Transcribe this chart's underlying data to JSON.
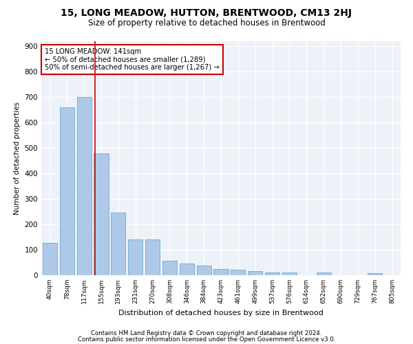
{
  "title": "15, LONG MEADOW, HUTTON, BRENTWOOD, CM13 2HJ",
  "subtitle": "Size of property relative to detached houses in Brentwood",
  "xlabel": "Distribution of detached houses by size in Brentwood",
  "ylabel": "Number of detached properties",
  "categories": [
    "40sqm",
    "78sqm",
    "117sqm",
    "155sqm",
    "193sqm",
    "231sqm",
    "270sqm",
    "308sqm",
    "346sqm",
    "384sqm",
    "423sqm",
    "461sqm",
    "499sqm",
    "537sqm",
    "576sqm",
    "614sqm",
    "652sqm",
    "690sqm",
    "729sqm",
    "767sqm",
    "805sqm"
  ],
  "values": [
    128,
    660,
    700,
    480,
    245,
    140,
    140,
    58,
    45,
    38,
    25,
    22,
    16,
    12,
    12,
    0,
    10,
    0,
    0,
    8,
    0
  ],
  "bar_color": "#aec8e8",
  "bar_edge_color": "#6aaad4",
  "vline_color": "#cc0000",
  "annotation_text": "15 LONG MEADOW: 141sqm\n← 50% of detached houses are smaller (1,289)\n50% of semi-detached houses are larger (1,267) →",
  "annotation_box_color": "#ffffff",
  "annotation_box_edge": "#cc0000",
  "footer1": "Contains HM Land Registry data © Crown copyright and database right 2024.",
  "footer2": "Contains public sector information licensed under the Open Government Licence v3.0.",
  "background_color": "#edf2f9",
  "ylim": [
    0,
    920
  ],
  "yticks": [
    0,
    100,
    200,
    300,
    400,
    500,
    600,
    700,
    800,
    900
  ]
}
